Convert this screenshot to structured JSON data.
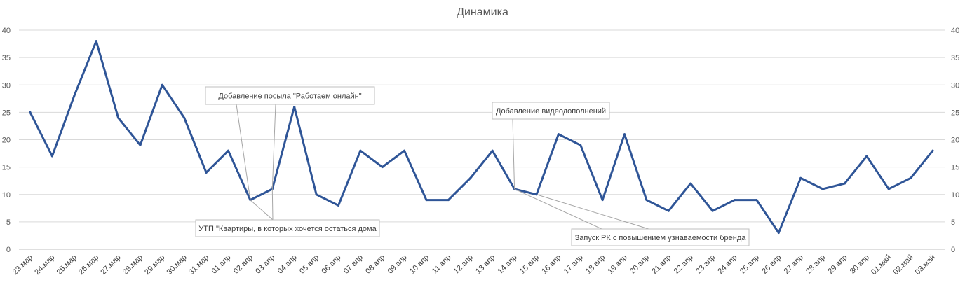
{
  "chart_data": {
    "type": "line",
    "title": "Динамика",
    "xlabel": "",
    "ylabel": "",
    "ylim": [
      0,
      40
    ],
    "y_ticks": [
      0,
      5,
      10,
      15,
      20,
      25,
      30,
      35,
      40
    ],
    "secondary_y_ticks": [
      0,
      5,
      10,
      15,
      20,
      25,
      30,
      35,
      40
    ],
    "grid": "horizontal",
    "line_color": "#2f5597",
    "categories": [
      "23.мар",
      "24.мар",
      "25.мар",
      "26.мар",
      "27.мар",
      "28.мар",
      "29.мар",
      "30.мар",
      "31.мар",
      "01.апр",
      "02.апр",
      "03.апр",
      "04.апр",
      "05.апр",
      "06.апр",
      "07.апр",
      "08.апр",
      "09.апр",
      "10.апр",
      "11.апр",
      "12.апр",
      "13.апр",
      "14.апр",
      "15.апр",
      "16.апр",
      "17.апр",
      "18.апр",
      "19.апр",
      "20.апр",
      "21.апр",
      "22.апр",
      "23.апр",
      "24.апр",
      "25.апр",
      "26.апр",
      "27.апр",
      "28.апр",
      "29.апр",
      "30.апр",
      "01.май",
      "02.май",
      "03.май"
    ],
    "series": [
      {
        "values": [
          25,
          17,
          28,
          38,
          24,
          19,
          30,
          24,
          14,
          18,
          9,
          11,
          26,
          10,
          8,
          18,
          15,
          18,
          9,
          9,
          13,
          18,
          11,
          10,
          21,
          19,
          9,
          21,
          9,
          7,
          12,
          7,
          9,
          9,
          3,
          13,
          11,
          12,
          17,
          11,
          13,
          18
        ]
      }
    ],
    "annotations": [
      {
        "text": "Добавление посыла \"Работаем онлайн\"",
        "points": [
          "02.апр",
          "03.апр"
        ]
      },
      {
        "text": "УТП \"Квартиры, в которых хочется остаться дома",
        "points": [
          "02.апр",
          "03.апр"
        ]
      },
      {
        "text": "Добавление видеодополнений",
        "points": [
          "14.апр"
        ]
      },
      {
        "text": "Запуск РК с повышением узнаваемости бренда",
        "points": [
          "14.апр",
          "15.апр"
        ]
      }
    ]
  }
}
